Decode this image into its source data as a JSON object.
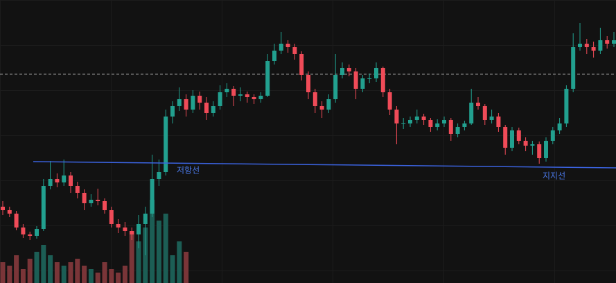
{
  "chart_data": {
    "type": "candlestick",
    "ylim": [
      0,
      408
    ],
    "y2lim": [
      0,
      408
    ],
    "up_color": "#22a08f",
    "down_color": "#f04b58",
    "volume_up_color": "#1c5e55",
    "volume_down_color": "#7a3538",
    "candles": [
      [
        110,
        118,
        98,
        105
      ],
      [
        105,
        110,
        95,
        100
      ],
      [
        100,
        104,
        76,
        80
      ],
      [
        80,
        85,
        65,
        70
      ],
      [
        70,
        74,
        62,
        68
      ],
      [
        68,
        82,
        64,
        78
      ],
      [
        78,
        150,
        75,
        140
      ],
      [
        140,
        176,
        135,
        150
      ],
      [
        150,
        158,
        138,
        145
      ],
      [
        145,
        178,
        140,
        155
      ],
      [
        155,
        160,
        130,
        140
      ],
      [
        140,
        146,
        122,
        130
      ],
      [
        130,
        135,
        105,
        115
      ],
      [
        115,
        128,
        110,
        120
      ],
      [
        120,
        136,
        112,
        118
      ],
      [
        118,
        122,
        100,
        105
      ],
      [
        105,
        110,
        80,
        85
      ],
      [
        85,
        92,
        72,
        80
      ],
      [
        80,
        88,
        68,
        75
      ],
      [
        75,
        80,
        62,
        70
      ],
      [
        70,
        98,
        50,
        85
      ],
      [
        85,
        110,
        40,
        100
      ],
      [
        100,
        185,
        95,
        150
      ],
      [
        150,
        178,
        140,
        160
      ],
      [
        160,
        250,
        155,
        240
      ],
      [
        240,
        262,
        230,
        255
      ],
      [
        255,
        282,
        248,
        265
      ],
      [
        265,
        272,
        240,
        250
      ],
      [
        250,
        278,
        245,
        270
      ],
      [
        270,
        276,
        250,
        260
      ],
      [
        260,
        268,
        235,
        245
      ],
      [
        245,
        262,
        240,
        255
      ],
      [
        255,
        285,
        250,
        275
      ],
      [
        275,
        288,
        268,
        280
      ],
      [
        280,
        284,
        255,
        270
      ],
      [
        270,
        282,
        262,
        272
      ],
      [
        272,
        276,
        260,
        268
      ],
      [
        268,
        272,
        258,
        265
      ],
      [
        265,
        275,
        260,
        270
      ],
      [
        270,
        330,
        268,
        320
      ],
      [
        320,
        345,
        315,
        335
      ],
      [
        335,
        362,
        330,
        345
      ],
      [
        345,
        350,
        332,
        340
      ],
      [
        340,
        345,
        322,
        330
      ],
      [
        330,
        334,
        292,
        300
      ],
      [
        300,
        305,
        265,
        275
      ],
      [
        275,
        280,
        245,
        255
      ],
      [
        255,
        262,
        238,
        250
      ],
      [
        250,
        272,
        245,
        265
      ],
      [
        265,
        330,
        260,
        300
      ],
      [
        300,
        318,
        295,
        310
      ],
      [
        310,
        315,
        298,
        305
      ],
      [
        305,
        310,
        265,
        280
      ],
      [
        280,
        300,
        275,
        295
      ],
      [
        295,
        302,
        288,
        295
      ],
      [
        295,
        318,
        290,
        310
      ],
      [
        310,
        312,
        268,
        275
      ],
      [
        275,
        280,
        242,
        250
      ],
      [
        250,
        255,
        200,
        230
      ],
      [
        230,
        238,
        222,
        230
      ],
      [
        230,
        240,
        225,
        235
      ],
      [
        235,
        250,
        230,
        240
      ],
      [
        240,
        244,
        228,
        235
      ],
      [
        235,
        238,
        218,
        225
      ],
      [
        225,
        236,
        220,
        230
      ],
      [
        230,
        240,
        225,
        235
      ],
      [
        235,
        238,
        205,
        215
      ],
      [
        215,
        230,
        210,
        225
      ],
      [
        225,
        234,
        220,
        230
      ],
      [
        230,
        280,
        228,
        260
      ],
      [
        260,
        268,
        250,
        255
      ],
      [
        255,
        258,
        228,
        235
      ],
      [
        235,
        250,
        230,
        240
      ],
      [
        240,
        245,
        218,
        225
      ],
      [
        225,
        228,
        185,
        195
      ],
      [
        195,
        225,
        190,
        220
      ],
      [
        220,
        224,
        200,
        205
      ],
      [
        205,
        210,
        190,
        198
      ],
      [
        198,
        205,
        185,
        200
      ],
      [
        200,
        204,
        172,
        180
      ],
      [
        180,
        210,
        175,
        205
      ],
      [
        205,
        225,
        200,
        220
      ],
      [
        220,
        238,
        215,
        230
      ],
      [
        230,
        285,
        225,
        280
      ],
      [
        280,
        360,
        275,
        340
      ],
      [
        340,
        375,
        335,
        345
      ],
      [
        345,
        352,
        330,
        340
      ],
      [
        340,
        348,
        325,
        335
      ],
      [
        335,
        368,
        330,
        350
      ],
      [
        350,
        356,
        338,
        345
      ],
      [
        345,
        362,
        340,
        350
      ]
    ],
    "volume": [
      30,
      25,
      40,
      20,
      35,
      45,
      55,
      40,
      30,
      25,
      30,
      35,
      25,
      20,
      15,
      30,
      20,
      15,
      25,
      75,
      60,
      80,
      120,
      90,
      100,
      40,
      60,
      45,
      null,
      null,
      null,
      null,
      null,
      null,
      null,
      null,
      null,
      null,
      null,
      null,
      null,
      null,
      null,
      null,
      null,
      null,
      null,
      null,
      null,
      null,
      null,
      null,
      null,
      null,
      null,
      null,
      null,
      null,
      null,
      null,
      null,
      null,
      null,
      null,
      null,
      null,
      null,
      null,
      null,
      null,
      null,
      null,
      null,
      null,
      null,
      null,
      null,
      null,
      null,
      null,
      null,
      null,
      null,
      null,
      null,
      null,
      null,
      null,
      null,
      null,
      null
    ],
    "price_line": 301,
    "trendline": {
      "color": "#3b63e0",
      "values": [
        175,
        166
      ]
    },
    "annotations": [
      {
        "text": "저항선"
      },
      {
        "text": "지지선"
      }
    ]
  }
}
